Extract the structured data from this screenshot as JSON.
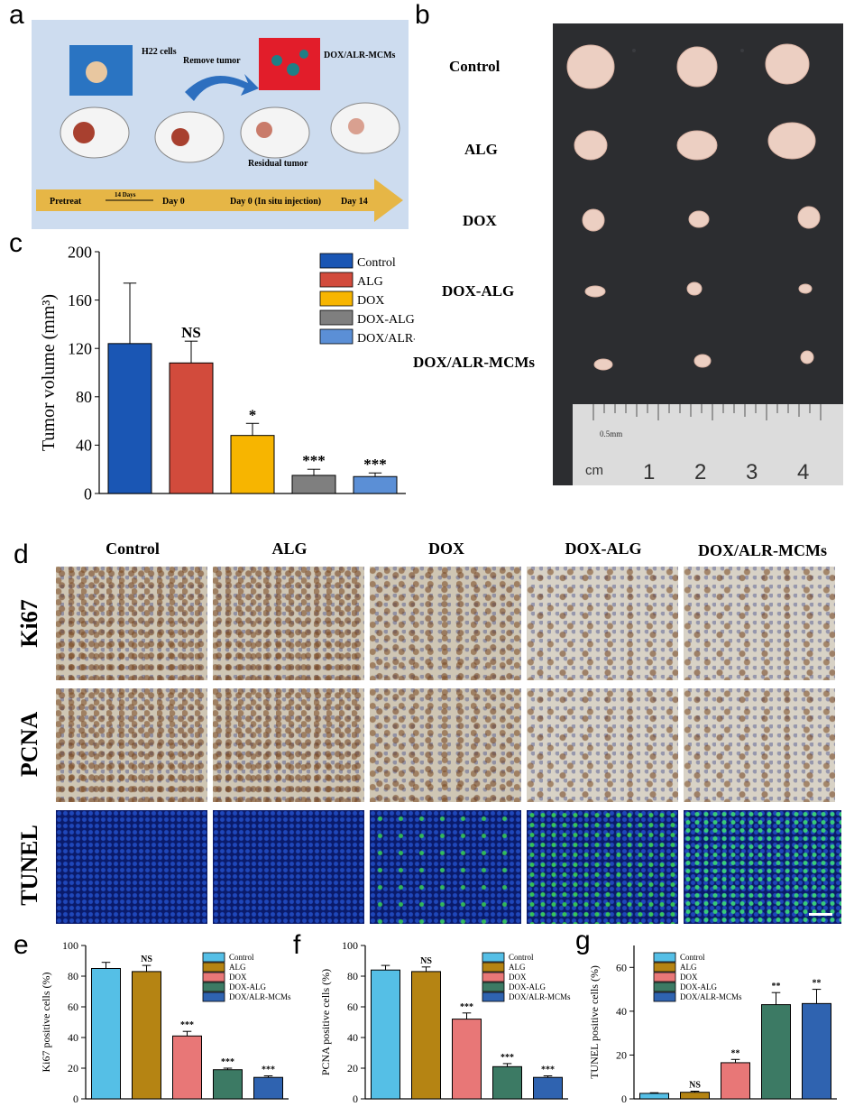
{
  "panels": {
    "a": "a",
    "b": "b",
    "c": "c",
    "d": "d",
    "e": "e",
    "f": "f",
    "g": "g"
  },
  "schematic": {
    "cells_label": "H22 cells",
    "remove_label": "Remove tumor",
    "drug_label": "DOX/ALR-MCMs",
    "residual_label": "Residual tumor",
    "timeline": [
      "Pretreat",
      "14 Days",
      "Day 0",
      "Day 0 (In situ injection)",
      "Day 14"
    ],
    "colors": {
      "bg": "#c9d9ee",
      "arrow": "#e6b646",
      "red_box": "#e21d2a",
      "blue_box": "#2a74c2"
    }
  },
  "photo": {
    "groups": [
      "Control",
      "ALG",
      "DOX",
      "DOX-ALG",
      "DOX/ALR-MCMs"
    ],
    "ruler_unit": "cm",
    "ruler_small": "0.5mm",
    "ruler_numbers": [
      "1",
      "2",
      "3",
      "4"
    ]
  },
  "histology": {
    "columns": [
      "Control",
      "ALG",
      "DOX",
      "DOX-ALG",
      "DOX/ALR-MCMs"
    ],
    "rows": [
      "Ki67",
      "PCNA",
      "TUNEL"
    ]
  },
  "chart_data": [
    {
      "id": "c",
      "type": "bar",
      "categories": [
        "Control",
        "ALG",
        "DOX",
        "DOX-ALG",
        "DOX/ALR-MCMs"
      ],
      "values": [
        124,
        108,
        48,
        15,
        14
      ],
      "errors": [
        50,
        18,
        10,
        5,
        3
      ],
      "significance": [
        "",
        "NS",
        "*",
        "***",
        "***"
      ],
      "colors": [
        "#1a56b4",
        "#d24b3c",
        "#f7b500",
        "#7f7f7f",
        "#5b8fd6"
      ],
      "ylabel": "Tumor volume (mm³)",
      "ylim": [
        0,
        200
      ],
      "yticks": [
        0,
        40,
        80,
        120,
        160,
        200
      ],
      "legend": "top-right"
    },
    {
      "id": "e",
      "type": "bar",
      "categories": [
        "Control",
        "ALG",
        "DOX",
        "DOX-ALG",
        "DOX/ALR-MCMs"
      ],
      "values": [
        85,
        83,
        41,
        19,
        14
      ],
      "errors": [
        4,
        4,
        3,
        1,
        1
      ],
      "significance": [
        "",
        "NS",
        "***",
        "***",
        "***"
      ],
      "colors": [
        "#55bfe6",
        "#b58413",
        "#e87777",
        "#3c7a64",
        "#2f63b0"
      ],
      "ylabel": "Ki67 positive cells (%)",
      "ylim": [
        0,
        100
      ],
      "yticks": [
        0,
        20,
        40,
        60,
        80,
        100
      ],
      "legend": "top-right"
    },
    {
      "id": "f",
      "type": "bar",
      "categories": [
        "Control",
        "ALG",
        "DOX",
        "DOX-ALG",
        "DOX/ALR-MCMs"
      ],
      "values": [
        84,
        83,
        52,
        21,
        14
      ],
      "errors": [
        3,
        3,
        4,
        2,
        1
      ],
      "significance": [
        "",
        "NS",
        "***",
        "***",
        "***"
      ],
      "colors": [
        "#55bfe6",
        "#b58413",
        "#e87777",
        "#3c7a64",
        "#2f63b0"
      ],
      "ylabel": "PCNA positive cells (%)",
      "ylim": [
        0,
        100
      ],
      "yticks": [
        0,
        20,
        40,
        60,
        80,
        100
      ],
      "legend": "top-right"
    },
    {
      "id": "g",
      "type": "bar",
      "categories": [
        "Control",
        "ALG",
        "DOX",
        "DOX-ALG",
        "DOX/ALR-MCMs"
      ],
      "values": [
        2.5,
        3,
        16.5,
        43,
        43.5
      ],
      "errors": [
        0.3,
        0.5,
        1.5,
        5.5,
        6.5
      ],
      "significance": [
        "",
        "NS",
        "**",
        "**",
        "**"
      ],
      "colors": [
        "#55bfe6",
        "#b58413",
        "#e87777",
        "#3c7a64",
        "#2f63b0"
      ],
      "ylabel": "TUNEL positive cells (%)",
      "ylim": [
        0,
        70
      ],
      "yticks": [
        0,
        20,
        40,
        60
      ],
      "legend": "top-left"
    }
  ]
}
